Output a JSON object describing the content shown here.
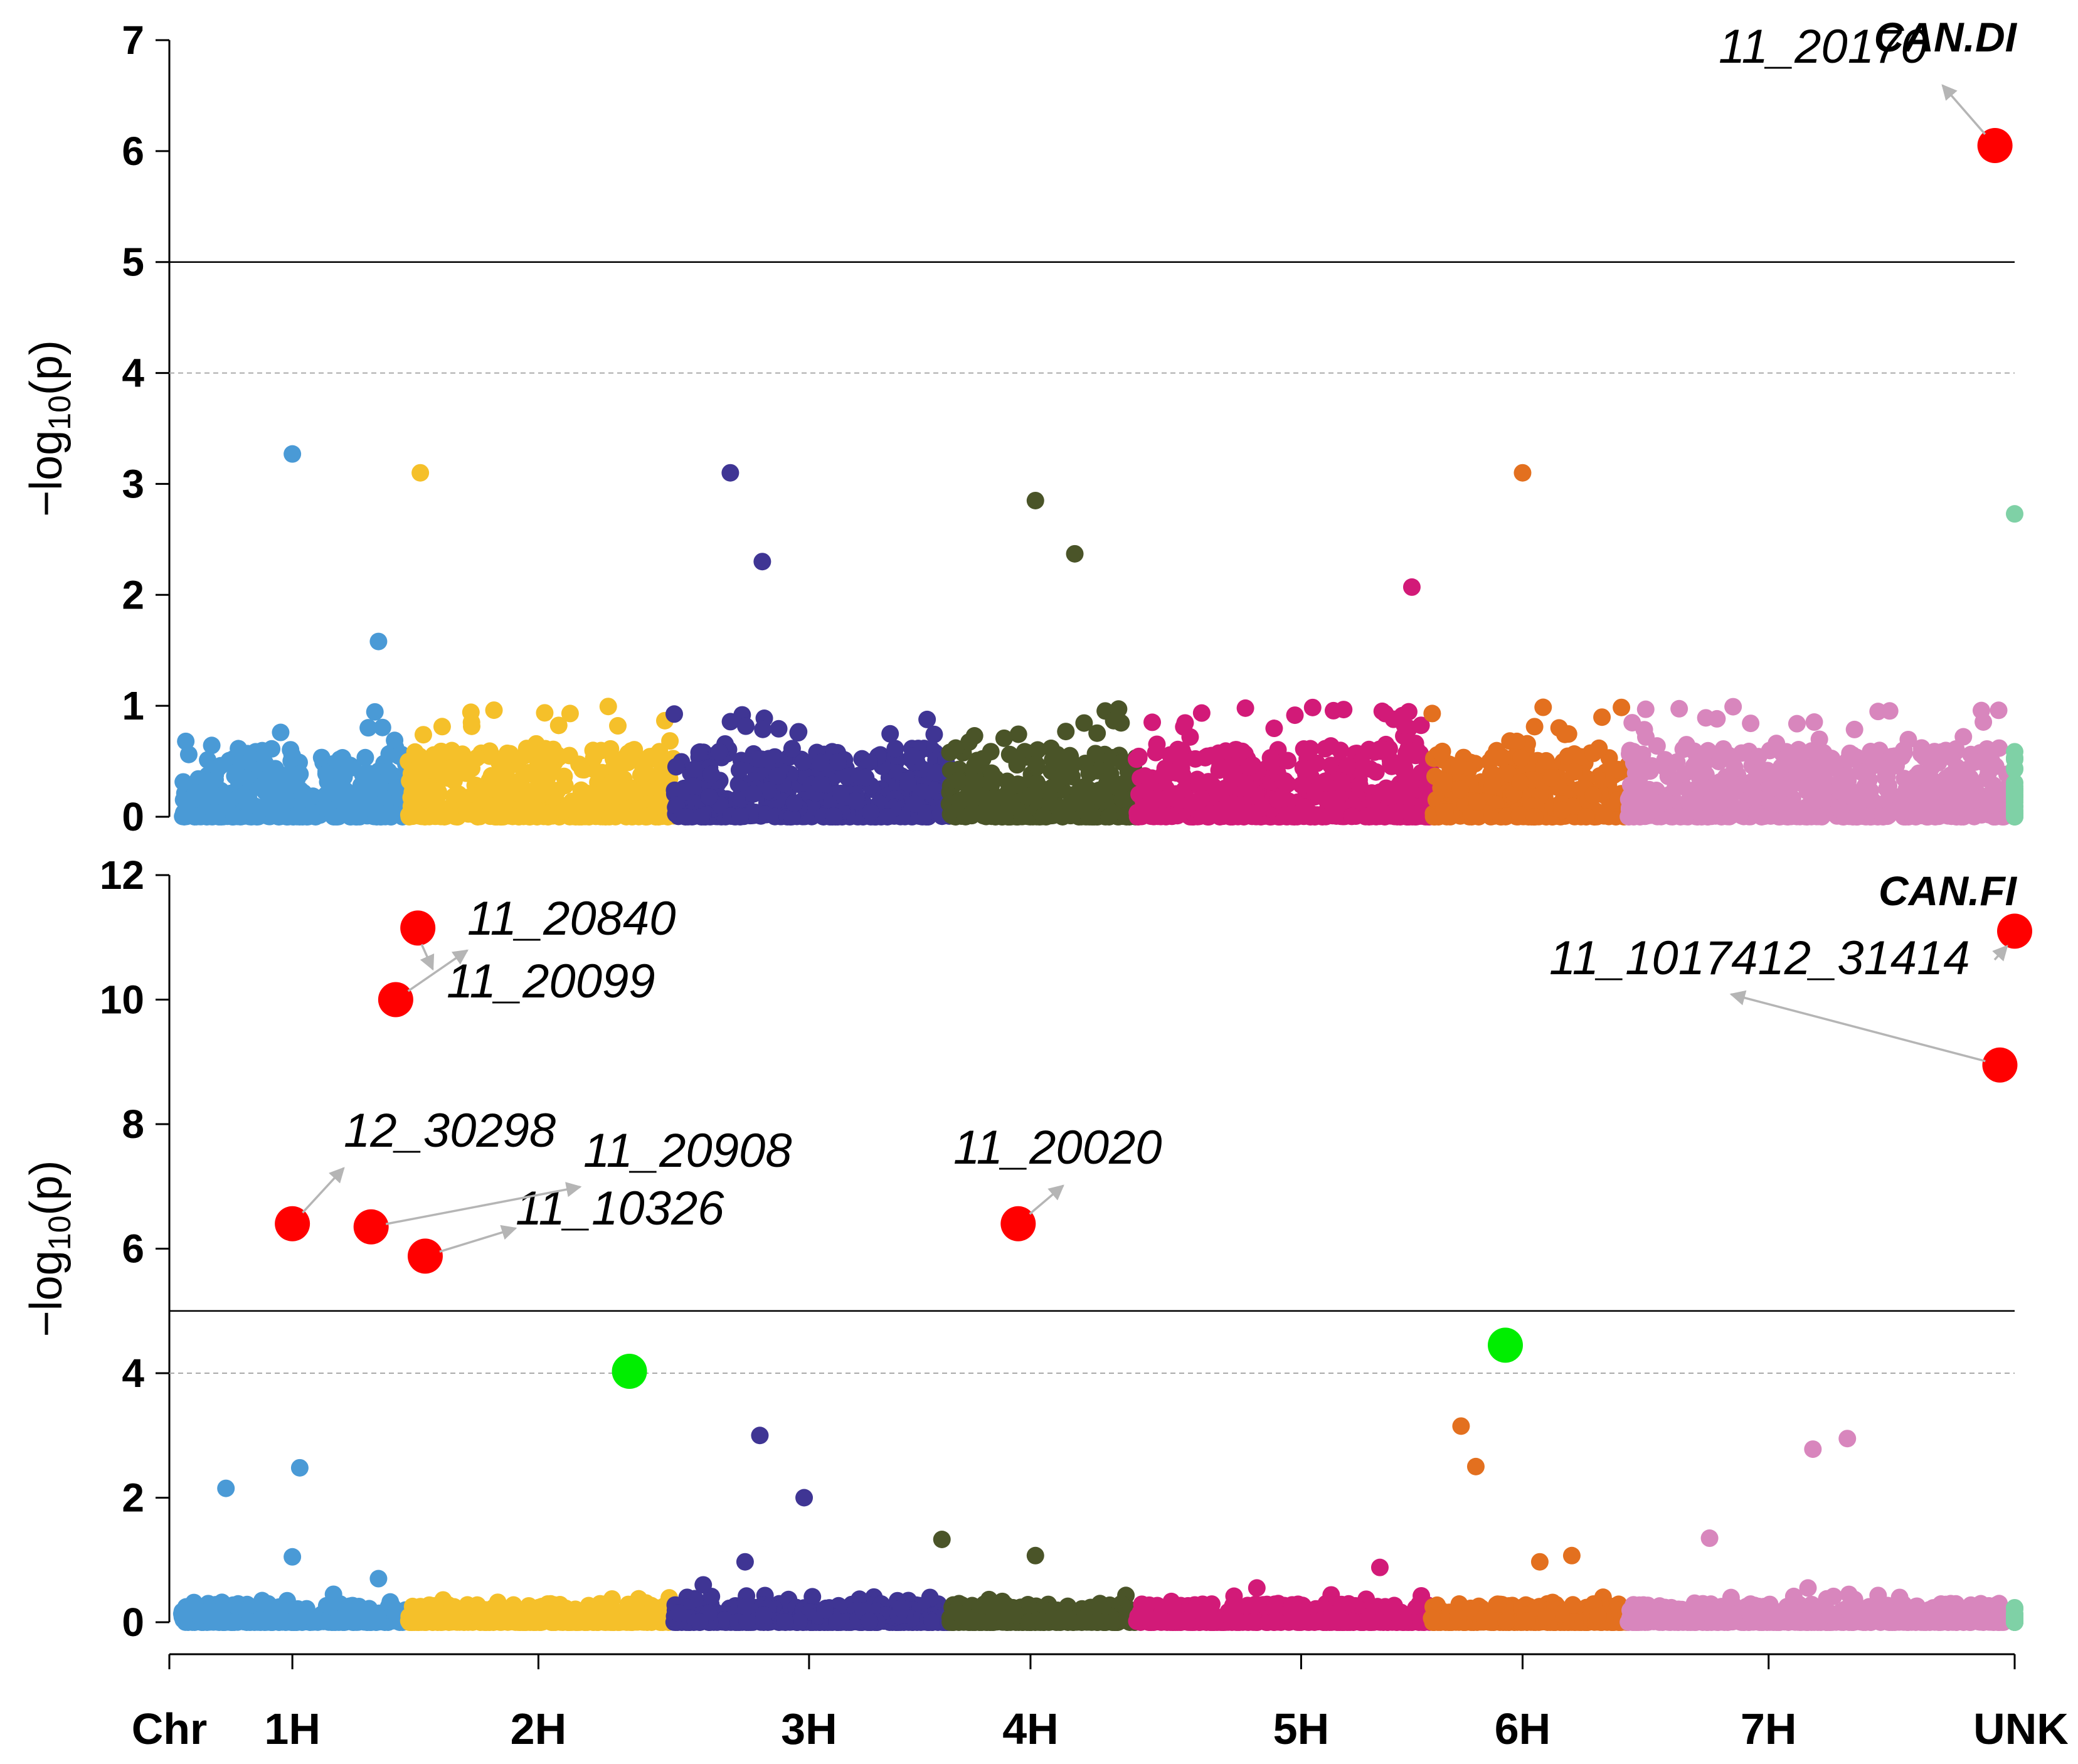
{
  "chart_data": [
    {
      "type": "scatter",
      "subtype": "manhattan",
      "title": "CAN.DI",
      "ylabel": "−log10(p)",
      "ylim": [
        0,
        7
      ],
      "yticks": [
        "0",
        "1",
        "2",
        "3",
        "4",
        "5",
        "6",
        "7"
      ],
      "significance_line": 5,
      "suggestive_line": 4,
      "notable_points": [
        {
          "chr": "1H",
          "x": 1.0,
          "y": 3.27,
          "color": "#4a9ad6"
        },
        {
          "chr": "1H",
          "x": 1.35,
          "y": 1.58,
          "color": "#4a9ad6"
        },
        {
          "chr": "2H",
          "x": 1.52,
          "y": 3.1,
          "color": "#f5c02a"
        },
        {
          "chr": "3H",
          "x": 2.78,
          "y": 3.1,
          "color": "#3f3594"
        },
        {
          "chr": "3H",
          "x": 2.91,
          "y": 2.3,
          "color": "#3f3594"
        },
        {
          "chr": "4H",
          "x": 4.02,
          "y": 2.85,
          "color": "#4a5428"
        },
        {
          "chr": "4H",
          "x": 4.18,
          "y": 2.37,
          "color": "#4a5428"
        },
        {
          "chr": "5H",
          "x": 5.55,
          "y": 2.07,
          "color": "#d21a78"
        },
        {
          "chr": "6H",
          "x": 6.0,
          "y": 3.1,
          "color": "#e3701f"
        },
        {
          "chr": "UNK",
          "x": 8.0,
          "y": 2.73,
          "color": "#7fd1a6"
        }
      ],
      "highlighted_snps": [
        {
          "label": "11_20170",
          "x": 7.92,
          "y": 6.05,
          "color": "#ff0000"
        }
      ]
    },
    {
      "type": "scatter",
      "subtype": "manhattan",
      "title": "CAN.FI",
      "ylabel": "−log10(p)",
      "ylim": [
        0,
        12
      ],
      "yticks": [
        "0",
        "2",
        "4",
        "6",
        "8",
        "10",
        "12"
      ],
      "significance_line": 5,
      "suggestive_line": 4,
      "notable_points": [
        {
          "chr": "1H",
          "x": 0.73,
          "y": 2.15,
          "color": "#4a9ad6"
        },
        {
          "chr": "1H",
          "x": 1.03,
          "y": 2.48,
          "color": "#4a9ad6"
        },
        {
          "chr": "1H",
          "x": 1.0,
          "y": 1.05,
          "color": "#4a9ad6"
        },
        {
          "chr": "1H",
          "x": 1.35,
          "y": 0.7,
          "color": "#4a9ad6"
        },
        {
          "chr": "3H",
          "x": 2.9,
          "y": 3.0,
          "color": "#3f3594"
        },
        {
          "chr": "3H",
          "x": 3.08,
          "y": 2.0,
          "color": "#3f3594"
        },
        {
          "chr": "3H",
          "x": 2.84,
          "y": 0.97,
          "color": "#3f3594"
        },
        {
          "chr": "3H",
          "x": 2.67,
          "y": 0.6,
          "color": "#3f3594"
        },
        {
          "chr": "4H",
          "x": 3.64,
          "y": 1.33,
          "color": "#4a5428"
        },
        {
          "chr": "4H",
          "x": 4.02,
          "y": 1.07,
          "color": "#4a5428"
        },
        {
          "chr": "5H",
          "x": 4.92,
          "y": 0.55,
          "color": "#d21a78"
        },
        {
          "chr": "5H",
          "x": 5.42,
          "y": 0.88,
          "color": "#d21a78"
        },
        {
          "chr": "6H",
          "x": 5.75,
          "y": 3.15,
          "color": "#e3701f"
        },
        {
          "chr": "6H",
          "x": 5.81,
          "y": 2.5,
          "color": "#e3701f"
        },
        {
          "chr": "6H",
          "x": 6.07,
          "y": 0.97,
          "color": "#e3701f"
        },
        {
          "chr": "6H",
          "x": 6.2,
          "y": 1.07,
          "color": "#e3701f"
        },
        {
          "chr": "7H",
          "x": 6.76,
          "y": 1.35,
          "color": "#d886bd"
        },
        {
          "chr": "7H",
          "x": 7.18,
          "y": 2.78,
          "color": "#d886bd"
        },
        {
          "chr": "7H",
          "x": 7.32,
          "y": 2.95,
          "color": "#d886bd"
        },
        {
          "chr": "7H",
          "x": 7.16,
          "y": 0.55,
          "color": "#d886bd"
        }
      ],
      "suggestive_snps": [
        {
          "x": 2.37,
          "y": 4.03,
          "color": "#00ee00"
        },
        {
          "x": 5.93,
          "y": 4.45,
          "color": "#00ee00"
        }
      ],
      "highlighted_snps": [
        {
          "label": "11_20840",
          "x": 1.51,
          "y": 11.15,
          "color": "#ff0000"
        },
        {
          "label": "11_20099",
          "x": 1.42,
          "y": 10.0,
          "color": "#ff0000"
        },
        {
          "label": "12_30298",
          "x": 1.0,
          "y": 6.4,
          "color": "#ff0000"
        },
        {
          "label": "11_20908",
          "x": 1.32,
          "y": 6.35,
          "color": "#ff0000"
        },
        {
          "label": "11_10326",
          "x": 1.54,
          "y": 5.88,
          "color": "#ff0000"
        },
        {
          "label": "11_20020",
          "x": 3.95,
          "y": 6.4,
          "color": "#ff0000"
        },
        {
          "label": "11_1017412_31414",
          "x": 7.94,
          "y": 8.95,
          "color": "#ff0000"
        },
        {
          "label": "",
          "x": 8.0,
          "y": 11.1,
          "color": "#ff0000"
        }
      ]
    }
  ],
  "x_axis": {
    "xlabel": "Chr",
    "xlim": [
      0.5,
      8.0
    ],
    "chromosomes": [
      {
        "label": "1H",
        "start": 0.55,
        "end": 1.47,
        "tick": 1.0,
        "color": "#4a9ad6"
      },
      {
        "label": "2H",
        "start": 1.47,
        "end": 2.55,
        "tick": 2.0,
        "color": "#f5c02a"
      },
      {
        "label": "3H",
        "start": 2.55,
        "end": 3.67,
        "tick": 3.1,
        "color": "#3f3594"
      },
      {
        "label": "4H",
        "start": 3.67,
        "end": 4.43,
        "tick": 4.0,
        "color": "#4a5428"
      },
      {
        "label": "5H",
        "start": 4.43,
        "end": 5.63,
        "tick": 5.1,
        "color": "#d21a78"
      },
      {
        "label": "6H",
        "start": 5.63,
        "end": 6.43,
        "tick": 6.0,
        "color": "#e3701f"
      },
      {
        "label": "7H",
        "start": 6.43,
        "end": 7.97,
        "tick": 7.0,
        "color": "#d886bd"
      },
      {
        "label": "UNK",
        "start": 7.97,
        "end": 8.03,
        "tick": 8.0,
        "color": "#7fd1a6"
      }
    ]
  }
}
